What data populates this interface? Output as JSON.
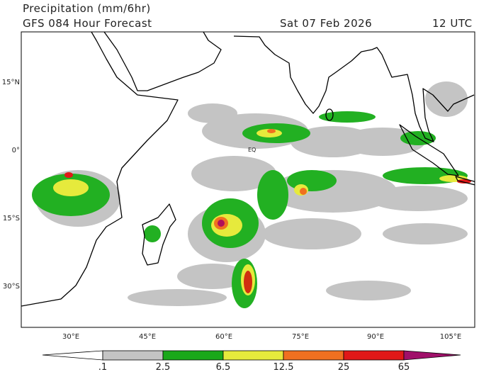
{
  "header": {
    "title": "Precipitation (mm/6hr)",
    "model": "GFS 084 Hour Forecast",
    "date": "Sat 07 Feb 2026",
    "time": "12 UTC"
  },
  "map": {
    "lat_labels": [
      "15°N",
      "0°",
      "15°S",
      "30°S"
    ],
    "lon_labels": [
      "30°E",
      "45°E",
      "60°E",
      "75°E",
      "90°E",
      "105°E"
    ],
    "eq_label": "EQ"
  },
  "colorbar": {
    "labels": [
      ".1",
      "2.5",
      "6.5",
      "12.5",
      "25",
      "65"
    ]
  }
}
